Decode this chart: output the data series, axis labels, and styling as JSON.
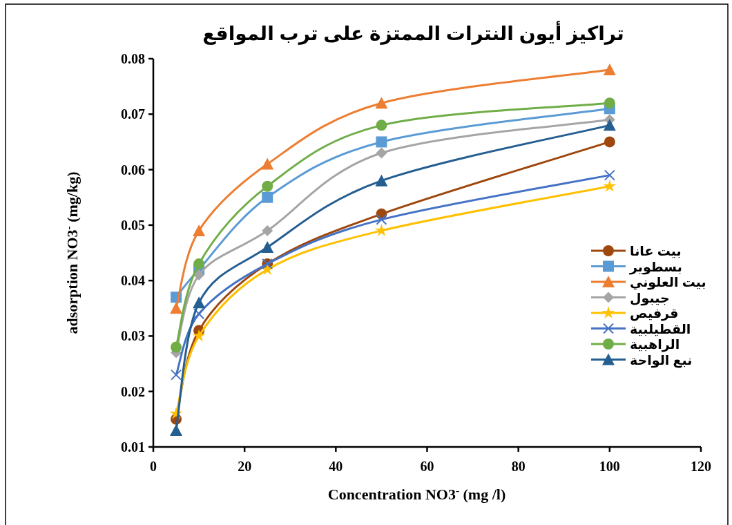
{
  "chart_data": {
    "type": "line",
    "title": "تراكيز أيون النترات الممتزة على ترب المواقع",
    "xlabel": "Concentration NO3$^{-}$ (mg /l)",
    "ylabel": "adsorption NO3$^{-}$ (mg/kg)",
    "x": [
      5,
      10,
      25,
      50,
      100
    ],
    "xlim": [
      0,
      120
    ],
    "xticks": [
      0,
      20,
      40,
      60,
      80,
      100,
      120
    ],
    "ylim": [
      0.01,
      0.08
    ],
    "yticks": [
      0.01,
      0.02,
      0.03,
      0.04,
      0.05,
      0.06,
      0.07,
      0.08
    ],
    "grid": false,
    "legend": "right",
    "series": [
      {
        "name": "بيت عانا",
        "color": "#9e480e",
        "marker": "circle",
        "values": [
          0.015,
          0.031,
          0.043,
          0.052,
          0.065
        ]
      },
      {
        "name": "بسطوير",
        "color": "#5b9bd5",
        "marker": "square",
        "values": [
          0.037,
          0.042,
          0.055,
          0.065,
          0.071
        ]
      },
      {
        "name": "بيت العلوني",
        "color": "#ed7d31",
        "marker": "triangle",
        "values": [
          0.035,
          0.049,
          0.061,
          0.072,
          0.078
        ]
      },
      {
        "name": "جيبول",
        "color": "#a5a5a5",
        "marker": "diamond",
        "values": [
          0.027,
          0.041,
          0.049,
          0.063,
          0.069
        ]
      },
      {
        "name": "قرفيص",
        "color": "#ffc000",
        "marker": "star",
        "values": [
          0.016,
          0.03,
          0.042,
          0.049,
          0.057
        ]
      },
      {
        "name": "القطيلبية",
        "color": "#4472c4",
        "marker": "cross",
        "values": [
          0.023,
          0.034,
          0.043,
          0.051,
          0.059
        ]
      },
      {
        "name": "الراهبية",
        "color": "#70ad47",
        "marker": "circle",
        "values": [
          0.028,
          0.043,
          0.057,
          0.068,
          0.072
        ]
      },
      {
        "name": "نبع الواحة",
        "color": "#255e91",
        "marker": "triangle",
        "values": [
          0.013,
          0.036,
          0.046,
          0.058,
          0.068
        ]
      }
    ]
  }
}
